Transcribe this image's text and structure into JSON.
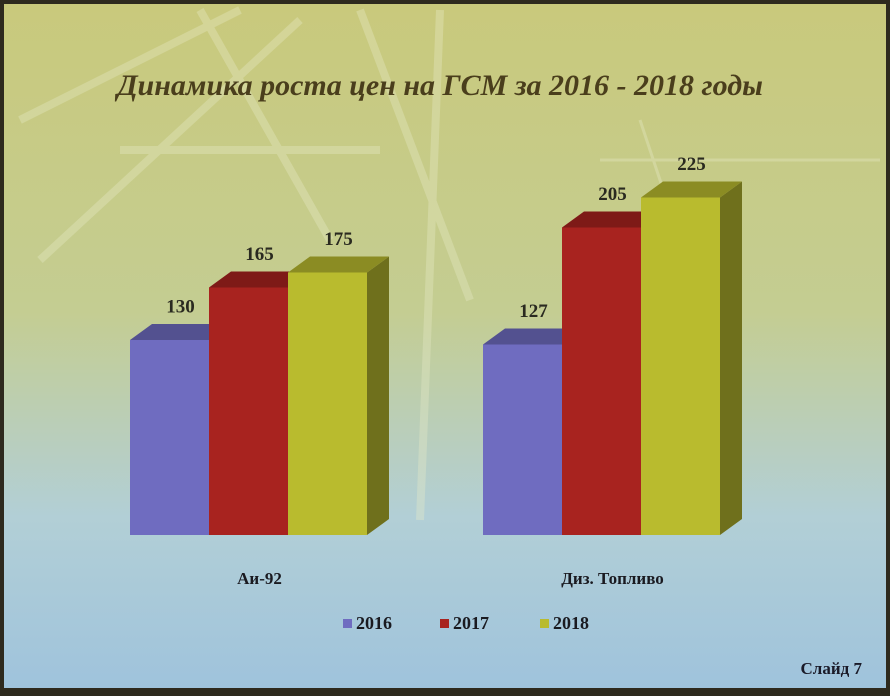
{
  "chart_data": {
    "type": "bar3d",
    "title": "Динамика роста цен на ГСМ за 2016 - 2018 годы",
    "categories": [
      "Аи-92",
      "Диз. Топливо"
    ],
    "series": [
      {
        "name": "2016",
        "color": "#6f6cc0",
        "values": [
          130,
          127
        ]
      },
      {
        "name": "2017",
        "color": "#a8231f",
        "values": [
          165,
          205
        ]
      },
      {
        "name": "2018",
        "color": "#b9bb2e",
        "values": [
          175,
          225
        ]
      }
    ],
    "legend": "bottom",
    "footer": "Слайд 7"
  }
}
